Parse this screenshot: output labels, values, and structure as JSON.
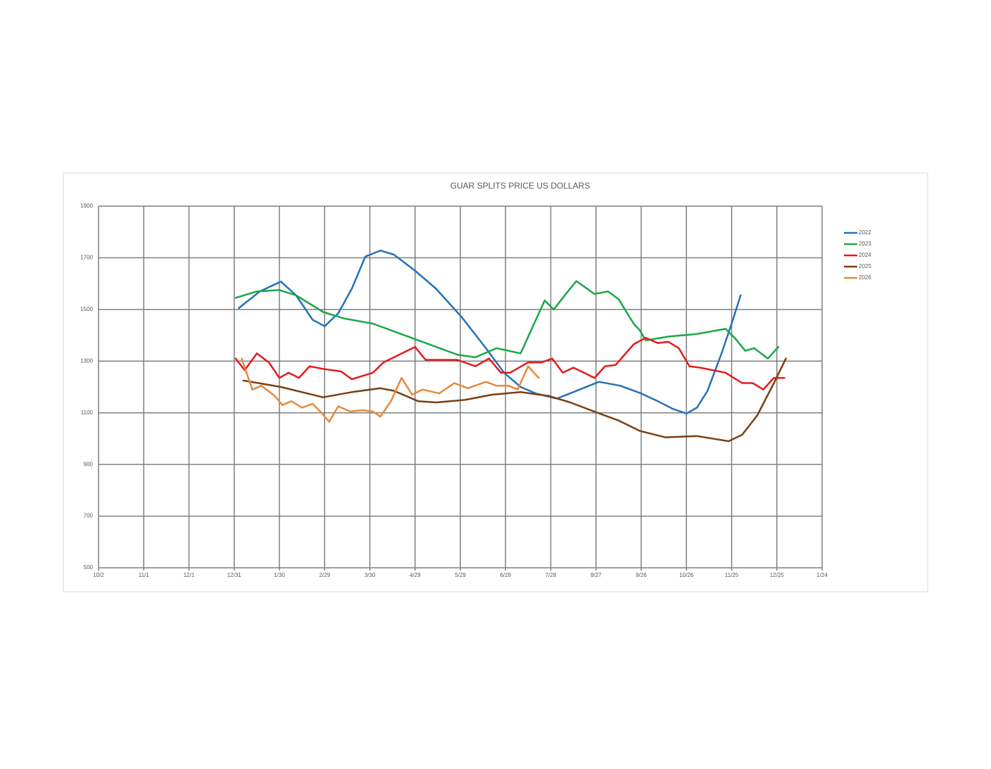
{
  "chart_data": {
    "type": "line",
    "title": "GUAR SPLITS PRICE US DOLLARS",
    "xlim": [
      0,
      480
    ],
    "xticks": [
      {
        "value": 0,
        "label": "10/2"
      },
      {
        "value": 30,
        "label": "11/1"
      },
      {
        "value": 60,
        "label": "12/1"
      },
      {
        "value": 90,
        "label": "12/31"
      },
      {
        "value": 120,
        "label": "1/30"
      },
      {
        "value": 150,
        "label": "2/29"
      },
      {
        "value": 180,
        "label": "3/30"
      },
      {
        "value": 210,
        "label": "4/29"
      },
      {
        "value": 240,
        "label": "5/29"
      },
      {
        "value": 270,
        "label": "6/28"
      },
      {
        "value": 300,
        "label": "7/28"
      },
      {
        "value": 330,
        "label": "8/27"
      },
      {
        "value": 360,
        "label": "9/26"
      },
      {
        "value": 390,
        "label": "10/26"
      },
      {
        "value": 420,
        "label": "11/25"
      },
      {
        "value": 450,
        "label": "12/25"
      },
      {
        "value": 480,
        "label": "1/24"
      }
    ],
    "ylim": [
      500,
      1900
    ],
    "yticks": [
      500,
      700,
      900,
      1100,
      1300,
      1500,
      1700,
      1900
    ],
    "grid": true,
    "legend": "right",
    "series": [
      {
        "name": "2022",
        "color": "#2471b8",
        "x": [
          93,
          107,
          121,
          131,
          142,
          150,
          159,
          168,
          177,
          187,
          196,
          210,
          224,
          241,
          257,
          269,
          280,
          290,
          304,
          315,
          332,
          346,
          360,
          371,
          381,
          390,
          397,
          404,
          413,
          420,
          426
        ],
        "values": [
          1505,
          1570,
          1608,
          1555,
          1460,
          1435,
          1485,
          1580,
          1705,
          1728,
          1712,
          1650,
          1580,
          1470,
          1350,
          1255,
          1200,
          1175,
          1155,
          1180,
          1220,
          1205,
          1175,
          1145,
          1115,
          1097,
          1120,
          1185,
          1325,
          1445,
          1555
        ]
      },
      {
        "name": "2023",
        "color": "#1aa64a",
        "x": [
          91,
          105,
          120,
          131,
          149,
          163,
          182,
          210,
          238,
          250,
          264,
          280,
          287,
          296,
          302,
          310,
          317,
          329,
          338,
          345,
          355,
          359,
          363,
          378,
          397,
          416,
          422,
          429,
          435,
          444,
          451
        ],
        "values": [
          1545,
          1570,
          1575,
          1555,
          1490,
          1465,
          1445,
          1385,
          1325,
          1315,
          1350,
          1330,
          1420,
          1535,
          1500,
          1560,
          1610,
          1560,
          1570,
          1540,
          1445,
          1420,
          1380,
          1395,
          1405,
          1425,
          1390,
          1340,
          1350,
          1310,
          1355
        ]
      },
      {
        "name": "2024",
        "color": "#e31a1c",
        "x": [
          91,
          97,
          105,
          113,
          120,
          126,
          133,
          140,
          149,
          161,
          168,
          182,
          189,
          203,
          210,
          217,
          238,
          250,
          259,
          267,
          273,
          285,
          294,
          301,
          308,
          315,
          322,
          329,
          336,
          343,
          355,
          363,
          371,
          378,
          385,
          392,
          399,
          416,
          427,
          434,
          441,
          448,
          455
        ],
        "values": [
          1310,
          1265,
          1330,
          1295,
          1235,
          1255,
          1235,
          1280,
          1270,
          1260,
          1230,
          1255,
          1295,
          1335,
          1355,
          1305,
          1305,
          1280,
          1310,
          1255,
          1255,
          1295,
          1295,
          1310,
          1255,
          1275,
          1255,
          1235,
          1280,
          1285,
          1365,
          1390,
          1370,
          1375,
          1350,
          1280,
          1275,
          1255,
          1215,
          1215,
          1190,
          1235,
          1235
        ]
      },
      {
        "name": "2025",
        "color": "#7b3f10",
        "x": [
          96,
          121,
          149,
          168,
          187,
          196,
          212,
          224,
          243,
          261,
          280,
          299,
          313,
          331,
          345,
          359,
          376,
          397,
          418,
          427,
          437,
          448,
          456
        ],
        "values": [
          1225,
          1200,
          1160,
          1180,
          1195,
          1185,
          1145,
          1140,
          1150,
          1170,
          1180,
          1165,
          1140,
          1100,
          1070,
          1030,
          1005,
          1010,
          990,
          1015,
          1090,
          1215,
          1310
        ]
      },
      {
        "name": "2026",
        "color": "#e8893a",
        "x": [
          95,
          102,
          108,
          117,
          122,
          128,
          135,
          142,
          148,
          153,
          159,
          167,
          175,
          182,
          187,
          194,
          201,
          208,
          215,
          226,
          236,
          245,
          257,
          264,
          272,
          278,
          285,
          292
        ],
        "values": [
          1310,
          1190,
          1205,
          1165,
          1130,
          1145,
          1120,
          1135,
          1100,
          1065,
          1125,
          1105,
          1110,
          1105,
          1085,
          1145,
          1235,
          1170,
          1190,
          1175,
          1215,
          1195,
          1220,
          1205,
          1205,
          1190,
          1280,
          1235
        ]
      }
    ]
  }
}
